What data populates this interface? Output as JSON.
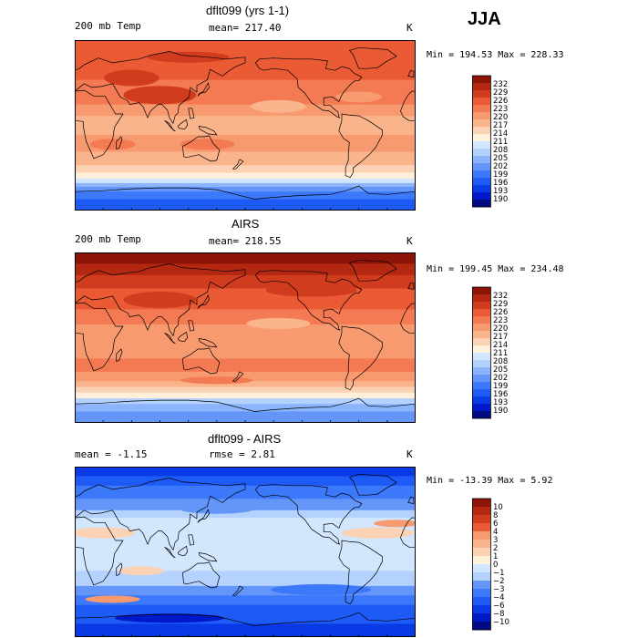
{
  "season": "JJA",
  "colors": {
    "abs": [
      "#000a82",
      "#0019c8",
      "#0a3ae6",
      "#1e5af5",
      "#3c78fa",
      "#6496fa",
      "#8cb4fc",
      "#b4d2fd",
      "#d2e6fe",
      "#fff0dc",
      "#fcd2b4",
      "#fab48c",
      "#f89a70",
      "#f37a52",
      "#ea5a35",
      "#d23c1e",
      "#b42812",
      "#8c1406"
    ],
    "diff": [
      "#000a82",
      "#0019c8",
      "#0a3ae6",
      "#1e5af5",
      "#3c78fa",
      "#6496fa",
      "#b4d2fd",
      "#d2e6fe",
      "#fff0dc",
      "#fcd2b4",
      "#fab48c",
      "#f89a70",
      "#ea5a35",
      "#d23c1e",
      "#b42812",
      "#8c1406"
    ]
  },
  "panels": [
    {
      "title": "dflt099 (yrs 1-1)",
      "left_label": "200 mb Temp",
      "mean_label": "mean= 217.40",
      "units": "K",
      "minmax": "Min = 194.53 Max = 228.33"
    },
    {
      "title": "AIRS",
      "left_label": "200 mb Temp",
      "mean_label": "mean= 218.55",
      "units": "K",
      "minmax": "Min = 199.45 Max = 234.48"
    },
    {
      "title": "dflt099 - AIRS",
      "left_label": "mean =   -1.15",
      "mean_label": "rmse =    2.81",
      "units": "K",
      "minmax": "Min = -13.39 Max =   5.92"
    }
  ],
  "chart_data": [
    {
      "type": "heatmap",
      "title": "dflt099 (yrs 1-1)",
      "subtitle": "200 mb Temp",
      "mean": 217.4,
      "units": "K",
      "min": 194.53,
      "max": 228.33,
      "colorbar_levels": [
        "232",
        "229",
        "226",
        "223",
        "220",
        "217",
        "214",
        "211",
        "208",
        "205",
        "202",
        "199",
        "196",
        "193",
        "190"
      ],
      "lat_profile_K": [
        {
          "lat": 80,
          "v": 226
        },
        {
          "lat": 60,
          "v": 224
        },
        {
          "lat": 40,
          "v": 223
        },
        {
          "lat": 20,
          "v": 218
        },
        {
          "lat": 0,
          "v": 216
        },
        {
          "lat": -20,
          "v": 218
        },
        {
          "lat": -40,
          "v": 214
        },
        {
          "lat": -60,
          "v": 205
        },
        {
          "lat": -80,
          "v": 196
        }
      ]
    },
    {
      "type": "heatmap",
      "title": "AIRS",
      "subtitle": "200 mb Temp",
      "mean": 218.55,
      "units": "K",
      "min": 199.45,
      "max": 234.48,
      "colorbar_levels": [
        "232",
        "229",
        "226",
        "223",
        "220",
        "217",
        "214",
        "211",
        "208",
        "205",
        "202",
        "199",
        "196",
        "193",
        "190"
      ],
      "lat_profile_K": [
        {
          "lat": 80,
          "v": 229
        },
        {
          "lat": 60,
          "v": 227
        },
        {
          "lat": 40,
          "v": 224
        },
        {
          "lat": 20,
          "v": 220
        },
        {
          "lat": 0,
          "v": 218
        },
        {
          "lat": -20,
          "v": 219
        },
        {
          "lat": -40,
          "v": 216
        },
        {
          "lat": -60,
          "v": 209
        },
        {
          "lat": -80,
          "v": 202
        }
      ]
    },
    {
      "type": "heatmap",
      "title": "dflt099 - AIRS",
      "mean": -1.15,
      "rmse": 2.81,
      "units": "K",
      "min": -13.39,
      "max": 5.92,
      "colorbar_levels": [
        "10",
        "8",
        "6",
        "4",
        "3",
        "2",
        "1",
        "0",
        "−1",
        "−2",
        "−3",
        "−4",
        "−6",
        "−8",
        "−10"
      ],
      "lat_profile_K": [
        {
          "lat": 80,
          "v": -5
        },
        {
          "lat": 60,
          "v": -3
        },
        {
          "lat": 40,
          "v": -1
        },
        {
          "lat": 20,
          "v": -1
        },
        {
          "lat": 0,
          "v": -1
        },
        {
          "lat": -20,
          "v": 0
        },
        {
          "lat": -40,
          "v": -1
        },
        {
          "lat": -60,
          "v": -4
        },
        {
          "lat": -80,
          "v": -7
        }
      ]
    }
  ]
}
